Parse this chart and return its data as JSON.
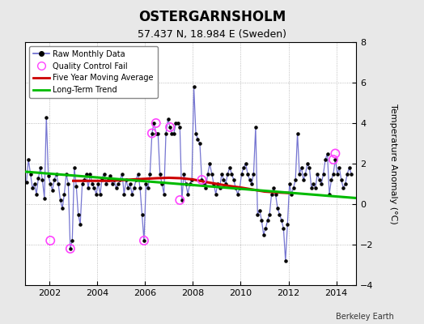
{
  "title": "OSTERGARNSHOLM",
  "subtitle": "57.437 N, 18.984 E (Sweden)",
  "ylabel": "Temperature Anomaly (°C)",
  "credit": "Berkeley Earth",
  "xlim": [
    2001.0,
    2014.83
  ],
  "ylim": [
    -4,
    8
  ],
  "yticks": [
    -4,
    -2,
    0,
    2,
    4,
    6,
    8
  ],
  "xticks": [
    2002,
    2004,
    2006,
    2008,
    2010,
    2012,
    2014
  ],
  "fig_bg_color": "#e8e8e8",
  "plot_bg_color": "#ffffff",
  "raw_color": "#6666cc",
  "moving_avg_color": "#cc0000",
  "trend_color": "#00bb00",
  "qc_color": "#ff44ff",
  "raw_monthly_x": [
    2001.042,
    2001.125,
    2001.208,
    2001.292,
    2001.375,
    2001.458,
    2001.542,
    2001.625,
    2001.708,
    2001.792,
    2001.875,
    2001.958,
    2002.042,
    2002.125,
    2002.208,
    2002.292,
    2002.375,
    2002.458,
    2002.542,
    2002.625,
    2002.708,
    2002.792,
    2002.875,
    2002.958,
    2003.042,
    2003.125,
    2003.208,
    2003.292,
    2003.375,
    2003.458,
    2003.542,
    2003.625,
    2003.708,
    2003.792,
    2003.875,
    2003.958,
    2004.042,
    2004.125,
    2004.208,
    2004.292,
    2004.375,
    2004.458,
    2004.542,
    2004.625,
    2004.708,
    2004.792,
    2004.875,
    2004.958,
    2005.042,
    2005.125,
    2005.208,
    2005.292,
    2005.375,
    2005.458,
    2005.542,
    2005.625,
    2005.708,
    2005.792,
    2005.875,
    2005.958,
    2006.042,
    2006.125,
    2006.208,
    2006.292,
    2006.375,
    2006.458,
    2006.542,
    2006.625,
    2006.708,
    2006.792,
    2006.875,
    2006.958,
    2007.042,
    2007.125,
    2007.208,
    2007.292,
    2007.375,
    2007.458,
    2007.542,
    2007.625,
    2007.708,
    2007.792,
    2007.875,
    2007.958,
    2008.042,
    2008.125,
    2008.208,
    2008.292,
    2008.375,
    2008.458,
    2008.542,
    2008.625,
    2008.708,
    2008.792,
    2008.875,
    2008.958,
    2009.042,
    2009.125,
    2009.208,
    2009.292,
    2009.375,
    2009.458,
    2009.542,
    2009.625,
    2009.708,
    2009.792,
    2009.875,
    2009.958,
    2010.042,
    2010.125,
    2010.208,
    2010.292,
    2010.375,
    2010.458,
    2010.542,
    2010.625,
    2010.708,
    2010.792,
    2010.875,
    2010.958,
    2011.042,
    2011.125,
    2011.208,
    2011.292,
    2011.375,
    2011.458,
    2011.542,
    2011.625,
    2011.708,
    2011.792,
    2011.875,
    2011.958,
    2012.042,
    2012.125,
    2012.208,
    2012.292,
    2012.375,
    2012.458,
    2012.542,
    2012.625,
    2012.708,
    2012.792,
    2012.875,
    2012.958,
    2013.042,
    2013.125,
    2013.208,
    2013.292,
    2013.375,
    2013.458,
    2013.542,
    2013.625,
    2013.708,
    2013.792,
    2013.875,
    2013.958,
    2014.042,
    2014.125,
    2014.208,
    2014.292,
    2014.375,
    2014.458,
    2014.542,
    2014.625
  ],
  "raw_monthly_y": [
    1.1,
    2.2,
    1.5,
    0.8,
    1.0,
    0.5,
    1.3,
    1.8,
    1.2,
    0.3,
    4.3,
    1.4,
    1.0,
    0.7,
    1.2,
    1.5,
    1.0,
    0.2,
    -0.2,
    0.5,
    1.5,
    1.0,
    -2.2,
    -1.8,
    1.8,
    0.9,
    -0.5,
    -1.0,
    1.0,
    1.2,
    1.5,
    0.8,
    1.5,
    1.0,
    0.8,
    0.5,
    1.0,
    0.5,
    1.3,
    1.5,
    1.0,
    1.2,
    1.4,
    1.0,
    1.2,
    0.8,
    1.0,
    1.2,
    1.5,
    0.5,
    1.2,
    0.8,
    1.0,
    0.5,
    0.8,
    1.2,
    1.5,
    0.8,
    -0.5,
    -1.8,
    1.0,
    0.8,
    1.5,
    3.5,
    4.0,
    3.5,
    3.5,
    1.5,
    1.0,
    0.5,
    3.5,
    4.2,
    3.8,
    3.5,
    3.5,
    4.0,
    4.0,
    3.8,
    0.2,
    1.5,
    1.0,
    0.5,
    1.0,
    1.2,
    5.8,
    3.5,
    3.2,
    3.0,
    1.2,
    1.0,
    0.8,
    1.5,
    2.0,
    1.5,
    1.0,
    0.5,
    1.0,
    0.8,
    1.5,
    1.2,
    1.0,
    1.5,
    1.8,
    1.5,
    1.2,
    0.8,
    0.5,
    0.8,
    1.5,
    1.8,
    2.0,
    1.5,
    1.2,
    1.0,
    1.5,
    3.8,
    -0.5,
    -0.3,
    -0.8,
    -1.5,
    -1.2,
    -0.8,
    -0.5,
    0.5,
    0.8,
    0.5,
    -0.2,
    -0.5,
    -0.8,
    -1.2,
    -2.8,
    -1.0,
    1.0,
    0.5,
    0.8,
    1.2,
    3.5,
    1.5,
    1.8,
    1.2,
    1.5,
    2.0,
    1.8,
    0.8,
    1.0,
    0.8,
    1.5,
    1.2,
    1.0,
    1.5,
    2.2,
    2.5,
    0.5,
    1.2,
    1.5,
    2.2,
    1.5,
    1.8,
    1.2,
    0.8,
    1.0,
    1.5,
    1.8,
    1.5
  ],
  "qc_fail_x": [
    2002.042,
    2002.875,
    2005.958,
    2006.292,
    2006.458,
    2007.042,
    2007.458,
    2008.375,
    2013.875,
    2013.958
  ],
  "qc_fail_y": [
    -1.8,
    -2.2,
    -1.8,
    3.5,
    4.0,
    3.8,
    0.2,
    1.2,
    2.2,
    2.5
  ],
  "moving_avg_x": [
    2003.0,
    2003.5,
    2004.0,
    2004.5,
    2005.0,
    2005.5,
    2006.0,
    2006.5,
    2007.0,
    2007.5,
    2008.0,
    2008.5,
    2009.0,
    2009.5,
    2010.0,
    2010.5,
    2011.0,
    2011.5,
    2012.0
  ],
  "moving_avg_y": [
    1.15,
    1.15,
    1.15,
    1.15,
    1.18,
    1.22,
    1.25,
    1.28,
    1.3,
    1.28,
    1.22,
    1.1,
    1.0,
    0.9,
    0.82,
    0.72,
    0.62,
    0.58,
    0.55
  ],
  "trend_x": [
    2001.0,
    2014.83
  ],
  "trend_y": [
    1.6,
    0.3
  ]
}
